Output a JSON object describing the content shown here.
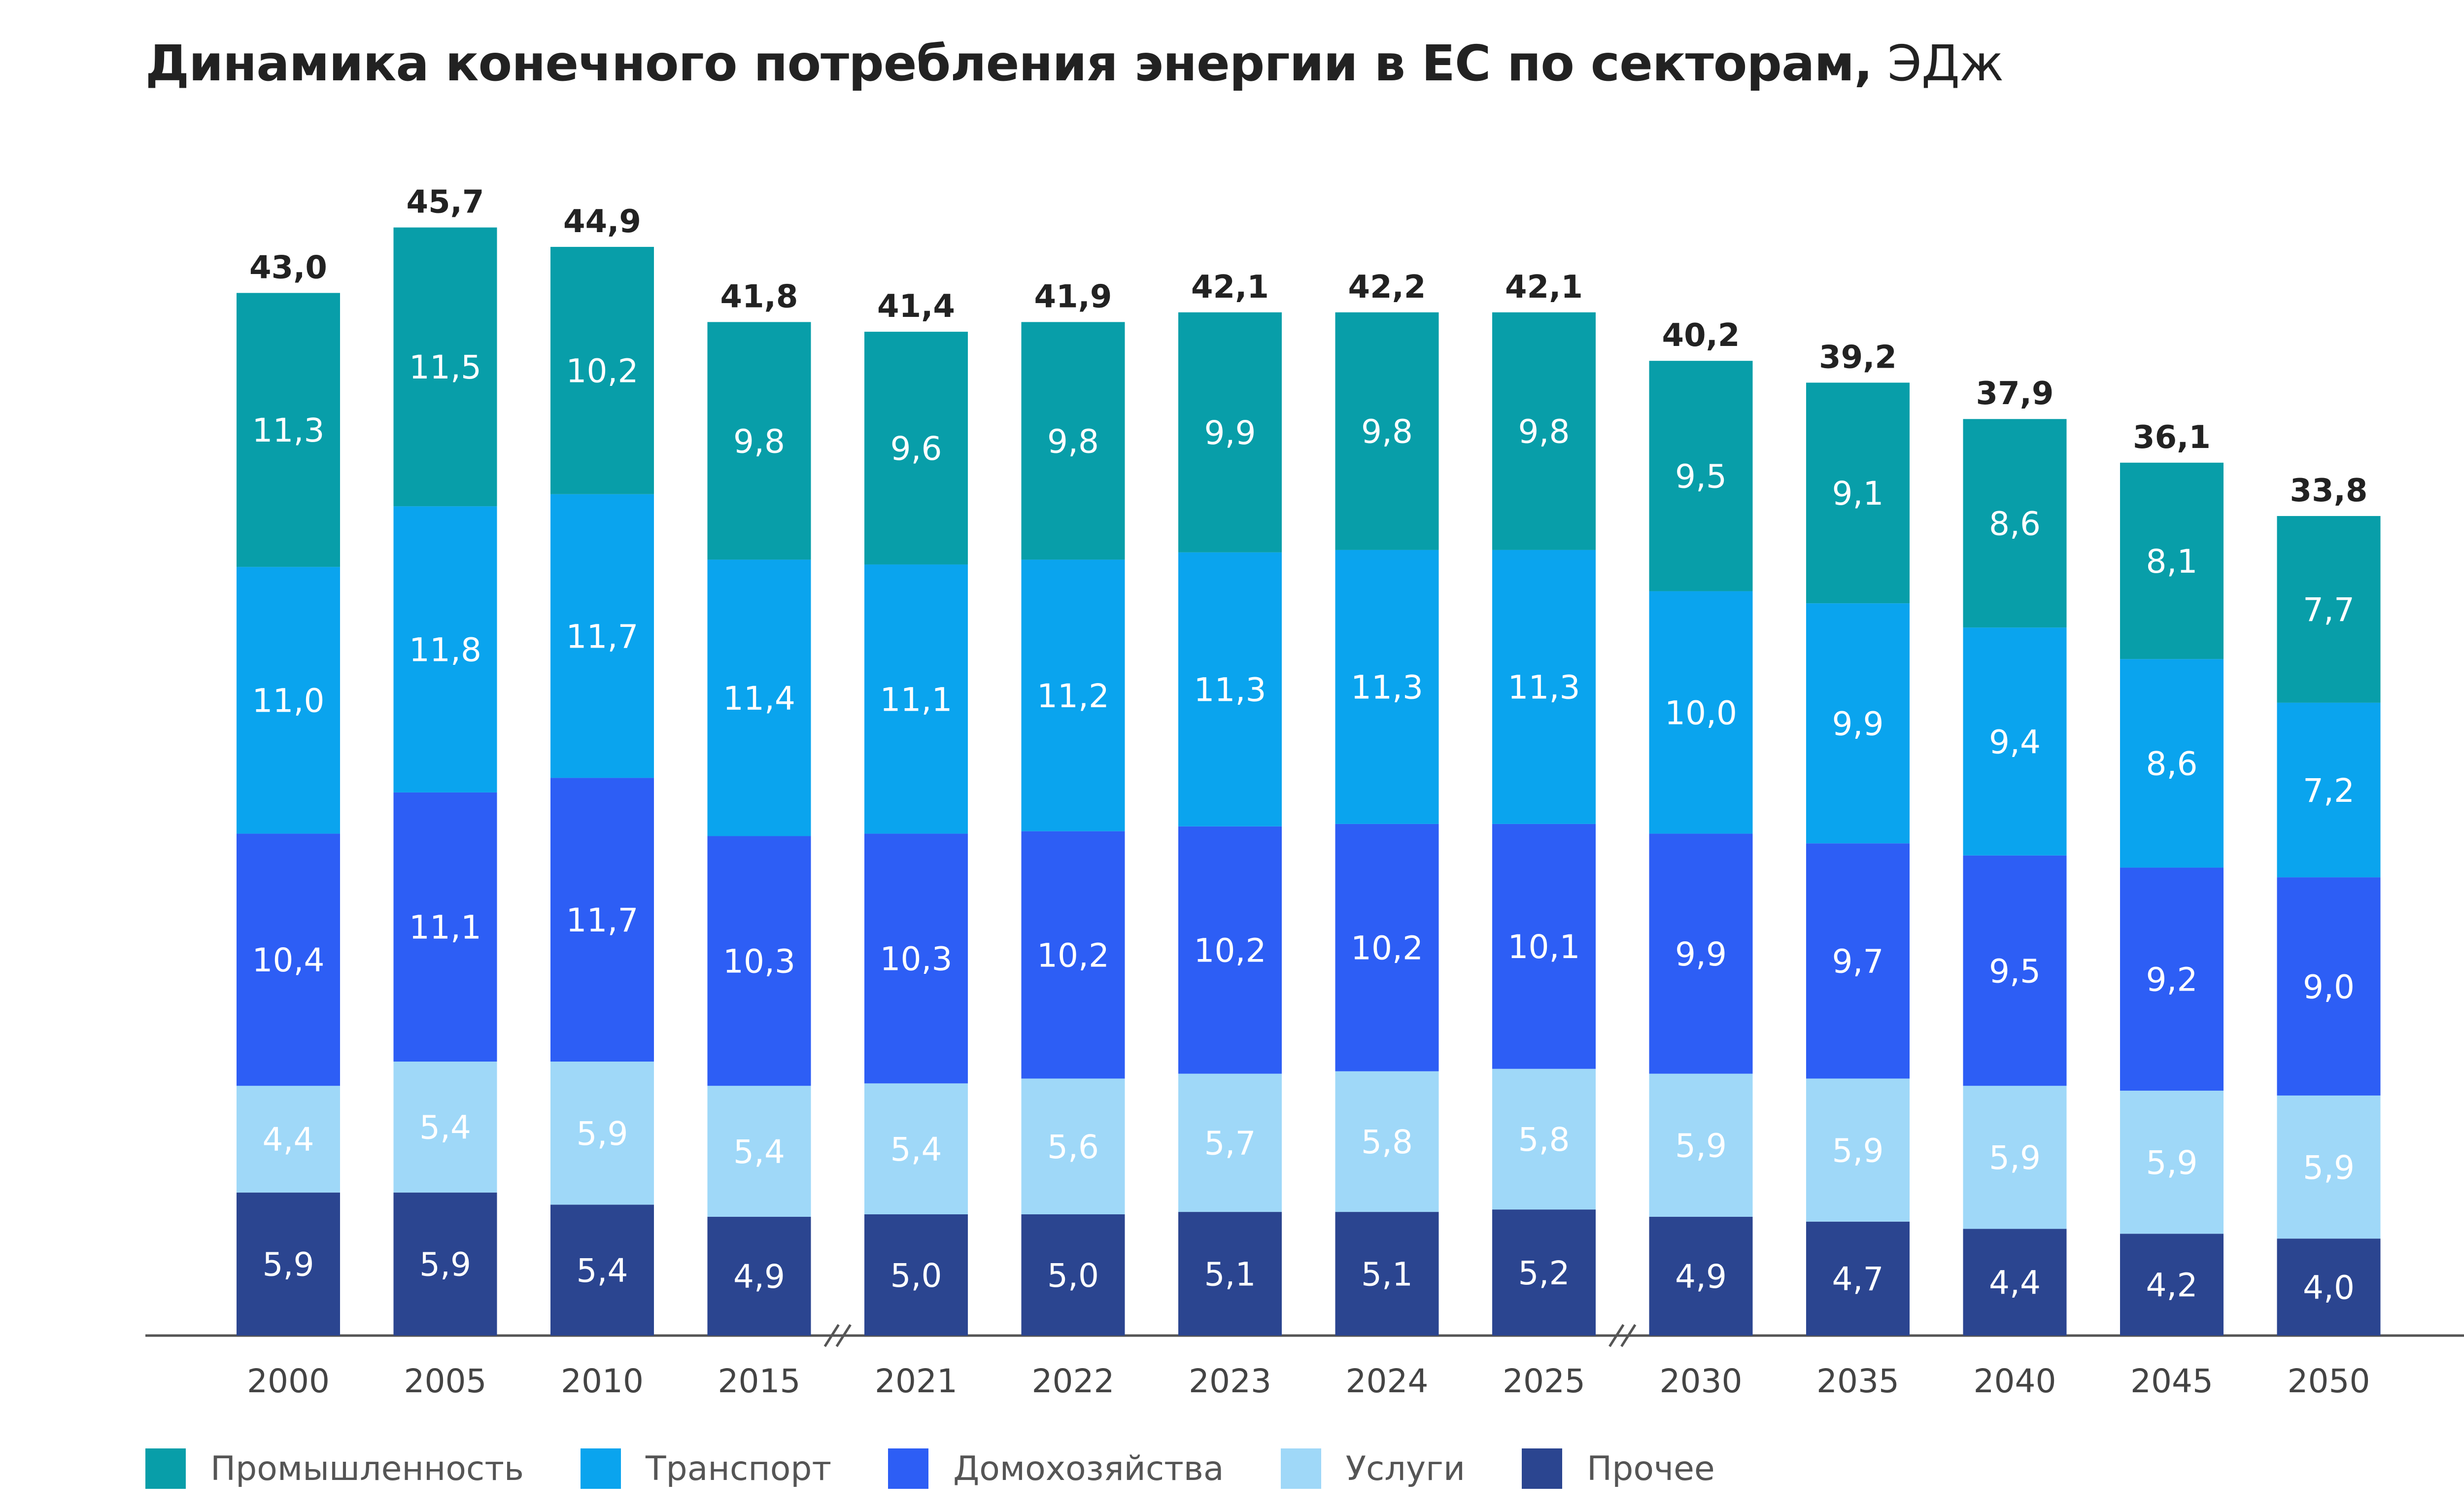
{
  "title": {
    "main": "Динамика конечного потребления энергии в ЕС по секторам,",
    "unit": "ЭДж"
  },
  "chart_data": {
    "type": "bar",
    "stacked": true,
    "categories": [
      "2000",
      "2005",
      "2010",
      "2015",
      "2021",
      "2022",
      "2023",
      "2024",
      "2025",
      "2030",
      "2035",
      "2040",
      "2045",
      "2050"
    ],
    "axis_breaks": [
      "between 2015 and 2021",
      "between 2025 and 2030"
    ],
    "totals": [
      "43,0",
      "45,7",
      "44,9",
      "41,8",
      "41,4",
      "41,9",
      "42,1",
      "42,2",
      "42,1",
      "40,2",
      "39,2",
      "37,9",
      "36,1",
      "33,8"
    ],
    "series": [
      {
        "name": "Прочее",
        "color": "#2b4590",
        "values": [
          5.9,
          5.9,
          5.4,
          4.9,
          5.0,
          5.0,
          5.1,
          5.1,
          5.2,
          4.9,
          4.7,
          4.4,
          4.2,
          4.0
        ]
      },
      {
        "name": "Услуги",
        "color": "#9fd8f8",
        "values": [
          4.4,
          5.4,
          5.9,
          5.4,
          5.4,
          5.6,
          5.7,
          5.8,
          5.8,
          5.9,
          5.9,
          5.9,
          5.9,
          5.9
        ]
      },
      {
        "name": "Домохозяйства",
        "color": "#2d5ef5",
        "values": [
          10.4,
          11.1,
          11.7,
          10.3,
          10.3,
          10.2,
          10.2,
          10.2,
          10.1,
          9.9,
          9.7,
          9.5,
          9.2,
          9.0
        ]
      },
      {
        "name": "Транспорт",
        "color": "#0aa4ee",
        "values": [
          11.0,
          11.8,
          11.7,
          11.4,
          11.1,
          11.2,
          11.3,
          11.3,
          11.3,
          10.0,
          9.9,
          9.4,
          8.6,
          7.2
        ]
      },
      {
        "name": "Промышленность",
        "color": "#089ea9",
        "values": [
          11.3,
          11.5,
          10.2,
          9.8,
          9.6,
          9.8,
          9.9,
          9.8,
          9.8,
          9.5,
          9.1,
          8.6,
          8.1,
          7.7
        ]
      }
    ],
    "legend_order": [
      "Промышленность",
      "Транспорт",
      "Домохозяйства",
      "Услуги",
      "Прочее"
    ],
    "legend_position": "bottom",
    "grid": false,
    "decimal_separator": ","
  }
}
